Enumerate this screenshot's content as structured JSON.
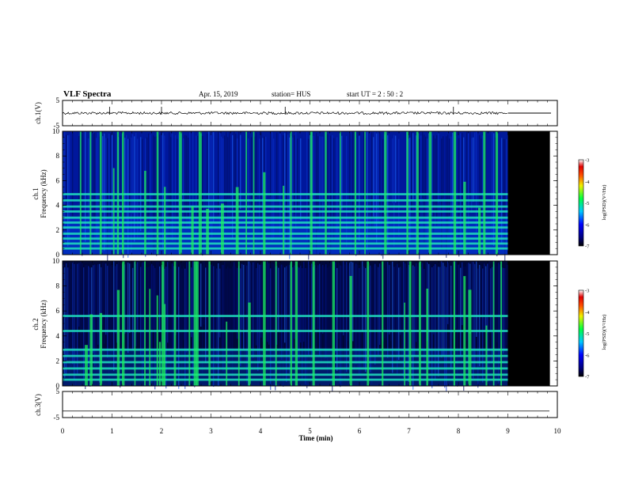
{
  "header": {
    "title": "VLF Spectra",
    "date": "Apr. 15, 2019",
    "station": "station= HUS",
    "start": "start  UT  =   2  : 50 : 2"
  },
  "chart_data": [
    {
      "type": "line",
      "name": "ch.1 waveform",
      "ylabel": "ch.1(V)",
      "ylim": [
        -5,
        5
      ],
      "yticks": [
        "5",
        "-5"
      ],
      "xlim": [
        0,
        10
      ],
      "baseline": 0,
      "data_end_min": 9.0,
      "constant_after_end": true
    },
    {
      "type": "heatmap",
      "name": "ch.1 spectrogram",
      "ylabel_top": "ch.1",
      "ylabel": "Frequency  (kHz)",
      "ylim": [
        0,
        10
      ],
      "yticks": [
        "0",
        "2",
        "4",
        "6",
        "8",
        "10"
      ],
      "xlim": [
        0,
        10
      ],
      "data_end_min": 9.0,
      "no_data_end_min": 9.85,
      "colorbar": {
        "label": "log(PSD)(V²/Hz)",
        "range": [
          -7,
          -3
        ],
        "ticks": [
          "-3",
          "-4",
          "-5",
          "-6",
          "-7"
        ]
      },
      "bands_khz": [
        0.5,
        0.9,
        1.3,
        1.7,
        2.2,
        2.6,
        3.0,
        3.5,
        3.9,
        4.4,
        4.9
      ],
      "burst_times_min": [
        0.35,
        0.55,
        0.75,
        1.02,
        1.1,
        1.2,
        1.65,
        1.9,
        2.05,
        2.35,
        2.6,
        2.75,
        2.9,
        3.2,
        3.5,
        3.7,
        3.85,
        4.05,
        4.45,
        4.6,
        5.0,
        5.3,
        5.6,
        5.9,
        6.1,
        6.5,
        6.95,
        7.15,
        7.4,
        7.9,
        8.1,
        8.4,
        8.5,
        8.75
      ]
    },
    {
      "type": "heatmap",
      "name": "ch.2 spectrogram",
      "ylabel_top": "ch.2",
      "ylabel": "Frequency  (kHz)",
      "ylim": [
        0,
        10
      ],
      "yticks": [
        "0",
        "2",
        "4",
        "6",
        "8",
        "10"
      ],
      "xlim": [
        0,
        10
      ],
      "data_end_min": 9.0,
      "no_data_end_min": 9.85,
      "colorbar": {
        "label": "log(PSD)(V²/Hz)",
        "range": [
          -7,
          -3
        ],
        "ticks": [
          "-3",
          "-4",
          "-5",
          "-6",
          "-7"
        ]
      },
      "bands_khz": [
        0.5,
        0.9,
        1.4,
        1.9,
        2.4,
        2.9,
        4.4,
        5.6
      ],
      "burst_times_min": [
        0.45,
        0.55,
        0.75,
        1.1,
        1.2,
        1.45,
        1.65,
        1.75,
        1.9,
        1.95,
        2.0,
        2.05,
        2.25,
        2.55,
        2.65,
        2.7,
        2.95,
        3.3,
        3.55,
        3.75,
        4.05,
        4.3,
        4.6,
        4.7,
        5.05,
        5.45,
        5.8,
        6.15,
        6.45,
        6.9,
        7.0,
        7.2,
        7.35,
        7.9,
        8.1,
        8.2,
        8.55,
        8.7,
        8.85
      ]
    },
    {
      "type": "line",
      "name": "ch.3 waveform",
      "ylabel": "ch.3(V)",
      "ylim": [
        -5,
        5
      ],
      "yticks": [
        "5",
        "-5"
      ],
      "xlim": [
        0,
        10
      ],
      "baseline": -2.5,
      "flat": true
    }
  ],
  "xaxis": {
    "label": "Time  (min)",
    "ticks": [
      "0",
      "1",
      "2",
      "3",
      "4",
      "5",
      "6",
      "7",
      "8",
      "9",
      "10"
    ]
  },
  "colors": {
    "background": "#ffffff",
    "no_data": "#000000",
    "frame": "#000000"
  }
}
